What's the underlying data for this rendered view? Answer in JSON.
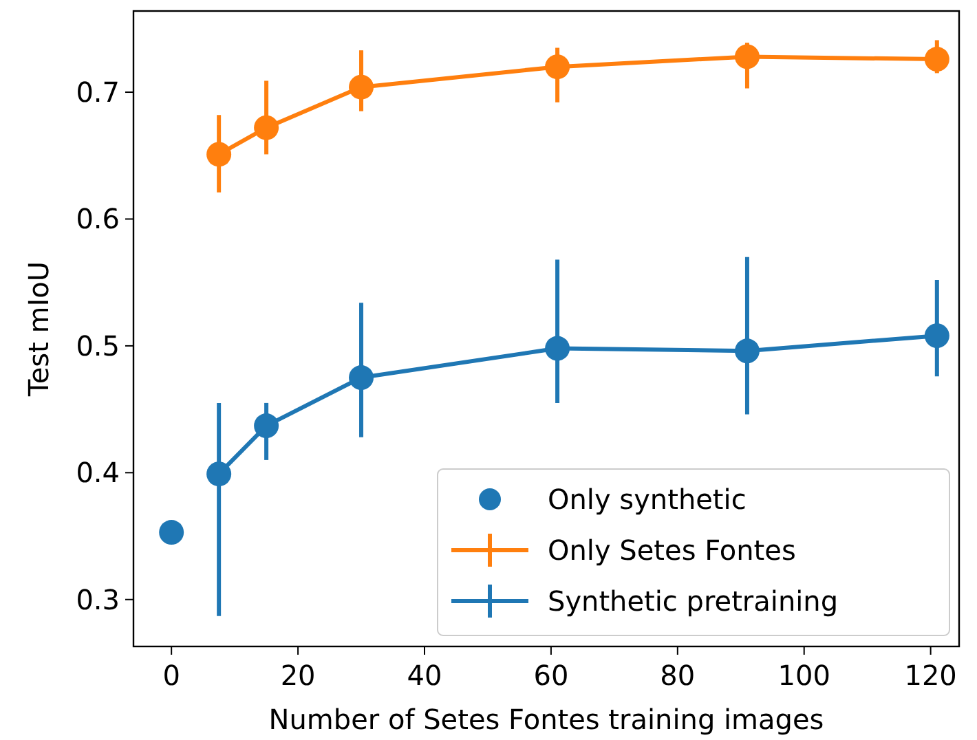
{
  "chart_data": {
    "type": "line",
    "xlabel": "Number of Setes Fontes training images",
    "ylabel": "Test mIoU",
    "xlim": [
      -6,
      124.5
    ],
    "ylim": [
      0.263,
      0.764
    ],
    "xticks": [
      0,
      20,
      40,
      60,
      80,
      100,
      120
    ],
    "yticks": [
      0.3,
      0.4,
      0.5,
      0.6,
      0.7
    ],
    "grid": false,
    "legend": "bottom right",
    "marker": "circle",
    "line_style": "solid",
    "series": [
      {
        "name": "Only synthetic",
        "type": "scatter",
        "color": "#1f77b4",
        "x": [
          0
        ],
        "values": [
          0.353
        ]
      },
      {
        "name": "Only Setes Fontes",
        "type": "line",
        "color": "#ff7f0e",
        "x": [
          7.5,
          15,
          30,
          61,
          91,
          121
        ],
        "values": [
          0.651,
          0.672,
          0.704,
          0.72,
          0.728,
          0.726
        ],
        "errors": [
          [
            0.621,
            0.682
          ],
          [
            0.651,
            0.709
          ],
          [
            0.685,
            0.733
          ],
          [
            0.692,
            0.735
          ],
          [
            0.703,
            0.739
          ],
          [
            0.715,
            0.741
          ]
        ]
      },
      {
        "name": "Synthetic pretraining",
        "type": "line",
        "color": "#1f77b4",
        "x": [
          7.5,
          15,
          30,
          61,
          91,
          121
        ],
        "values": [
          0.399,
          0.437,
          0.475,
          0.498,
          0.496,
          0.508
        ],
        "errors": [
          [
            0.287,
            0.455
          ],
          [
            0.41,
            0.455
          ],
          [
            0.428,
            0.534
          ],
          [
            0.455,
            0.568
          ],
          [
            0.446,
            0.57
          ],
          [
            0.476,
            0.552
          ]
        ]
      }
    ]
  }
}
